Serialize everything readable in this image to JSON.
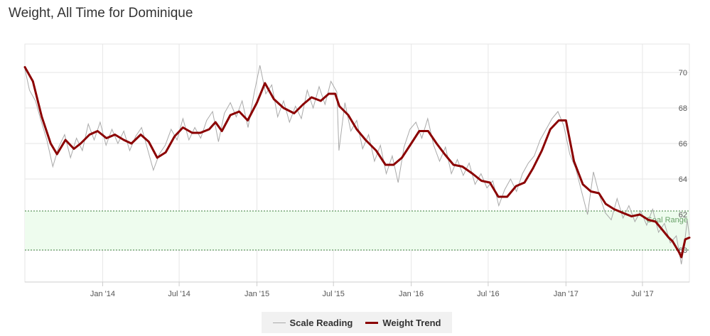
{
  "page": {
    "title": "Weight, All Time for Dominique"
  },
  "colors": {
    "trend": "#8b0000",
    "scale": "#a9a9a9",
    "goal_fill": "#eefcee",
    "goal_line": "#3a7d3a",
    "grid": "#e6e6e6",
    "axis": "#cccccc"
  },
  "legend": {
    "scale_label": "Scale Reading",
    "trend_label": "Weight Trend"
  },
  "chart_data": {
    "type": "line",
    "title": "Weight, All Time for Dominique",
    "x_start": "2013-07-01",
    "x_end": "2017-10-20",
    "xlim": [
      "2013-07-01",
      "2017-10-20"
    ],
    "ylim": [
      58.2,
      71.6
    ],
    "x_ticks": [
      {
        "date": "2014-01-01",
        "label": "Jan '14"
      },
      {
        "date": "2014-07-01",
        "label": "Jul '14"
      },
      {
        "date": "2015-01-01",
        "label": "Jan '15"
      },
      {
        "date": "2015-07-01",
        "label": "Jul '15"
      },
      {
        "date": "2016-01-01",
        "label": "Jan '16"
      },
      {
        "date": "2016-07-01",
        "label": "Jul '16"
      },
      {
        "date": "2017-01-01",
        "label": "Jan '17"
      },
      {
        "date": "2017-07-01",
        "label": "Jul '17"
      }
    ],
    "y_ticks": [
      60,
      62,
      64,
      66,
      68,
      70
    ],
    "grid": true,
    "legend_position": "bottom-center",
    "goal_range": {
      "min": 60,
      "max": 62.2,
      "label": "Goal Range"
    },
    "series": [
      {
        "name": "Weight Trend",
        "data": [
          [
            "2013-07-01",
            70.3
          ],
          [
            "2013-07-20",
            69.5
          ],
          [
            "2013-08-10",
            67.5
          ],
          [
            "2013-08-31",
            66.0
          ],
          [
            "2013-09-15",
            65.4
          ],
          [
            "2013-10-05",
            66.2
          ],
          [
            "2013-10-25",
            65.7
          ],
          [
            "2013-11-10",
            66.0
          ],
          [
            "2013-12-01",
            66.5
          ],
          [
            "2013-12-20",
            66.7
          ],
          [
            "2014-01-10",
            66.3
          ],
          [
            "2014-01-30",
            66.5
          ],
          [
            "2014-02-20",
            66.2
          ],
          [
            "2014-03-10",
            66.0
          ],
          [
            "2014-04-01",
            66.5
          ],
          [
            "2014-04-20",
            66.1
          ],
          [
            "2014-05-10",
            65.2
          ],
          [
            "2014-05-30",
            65.5
          ],
          [
            "2014-06-20",
            66.4
          ],
          [
            "2014-07-10",
            66.9
          ],
          [
            "2014-08-01",
            66.6
          ],
          [
            "2014-08-20",
            66.6
          ],
          [
            "2014-09-10",
            66.8
          ],
          [
            "2014-09-25",
            67.2
          ],
          [
            "2014-10-10",
            66.7
          ],
          [
            "2014-10-30",
            67.6
          ],
          [
            "2014-11-20",
            67.8
          ],
          [
            "2014-12-10",
            67.3
          ],
          [
            "2015-01-01",
            68.3
          ],
          [
            "2015-01-20",
            69.4
          ],
          [
            "2015-02-10",
            68.5
          ],
          [
            "2015-03-05",
            68.0
          ],
          [
            "2015-03-30",
            67.7
          ],
          [
            "2015-04-20",
            68.2
          ],
          [
            "2015-05-10",
            68.6
          ],
          [
            "2015-06-01",
            68.4
          ],
          [
            "2015-06-20",
            68.8
          ],
          [
            "2015-07-05",
            68.8
          ],
          [
            "2015-07-15",
            68.1
          ],
          [
            "2015-08-05",
            67.6
          ],
          [
            "2015-08-25",
            66.8
          ],
          [
            "2015-09-15",
            66.2
          ],
          [
            "2015-10-10",
            65.6
          ],
          [
            "2015-11-01",
            64.8
          ],
          [
            "2015-11-20",
            64.8
          ],
          [
            "2015-12-10",
            65.2
          ],
          [
            "2016-01-01",
            66.0
          ],
          [
            "2016-01-20",
            66.7
          ],
          [
            "2016-02-10",
            66.7
          ],
          [
            "2016-03-01",
            66.0
          ],
          [
            "2016-03-20",
            65.4
          ],
          [
            "2016-04-10",
            64.8
          ],
          [
            "2016-05-01",
            64.7
          ],
          [
            "2016-05-25",
            64.3
          ],
          [
            "2016-06-15",
            63.9
          ],
          [
            "2016-07-05",
            63.8
          ],
          [
            "2016-07-25",
            63.0
          ],
          [
            "2016-08-15",
            63.0
          ],
          [
            "2016-09-05",
            63.6
          ],
          [
            "2016-09-25",
            63.8
          ],
          [
            "2016-10-15",
            64.6
          ],
          [
            "2016-11-05",
            65.6
          ],
          [
            "2016-11-25",
            66.8
          ],
          [
            "2016-12-15",
            67.3
          ],
          [
            "2017-01-01",
            67.3
          ],
          [
            "2017-01-20",
            65.0
          ],
          [
            "2017-02-10",
            63.7
          ],
          [
            "2017-03-01",
            63.3
          ],
          [
            "2017-03-20",
            63.2
          ],
          [
            "2017-04-05",
            62.6
          ],
          [
            "2017-04-25",
            62.3
          ],
          [
            "2017-05-15",
            62.1
          ],
          [
            "2017-06-05",
            61.9
          ],
          [
            "2017-06-25",
            62.0
          ],
          [
            "2017-07-15",
            61.7
          ],
          [
            "2017-08-01",
            61.6
          ],
          [
            "2017-08-15",
            61.2
          ],
          [
            "2017-09-01",
            60.7
          ],
          [
            "2017-09-10",
            60.5
          ],
          [
            "2017-09-25",
            59.9
          ],
          [
            "2017-10-01",
            59.6
          ],
          [
            "2017-10-10",
            60.6
          ],
          [
            "2017-10-20",
            60.7
          ]
        ]
      },
      {
        "name": "Scale Reading",
        "data": [
          [
            "2013-07-01",
            70.2
          ],
          [
            "2013-07-12",
            69.0
          ],
          [
            "2013-07-26",
            68.4
          ],
          [
            "2013-08-08",
            67.3
          ],
          [
            "2013-08-22",
            66.2
          ],
          [
            "2013-09-05",
            64.7
          ],
          [
            "2013-09-19",
            65.8
          ],
          [
            "2013-10-03",
            66.5
          ],
          [
            "2013-10-17",
            65.2
          ],
          [
            "2013-10-31",
            66.3
          ],
          [
            "2013-11-14",
            65.6
          ],
          [
            "2013-11-28",
            67.1
          ],
          [
            "2013-12-12",
            66.2
          ],
          [
            "2013-12-26",
            67.2
          ],
          [
            "2014-01-09",
            65.9
          ],
          [
            "2014-01-23",
            66.8
          ],
          [
            "2014-02-06",
            66.0
          ],
          [
            "2014-02-20",
            66.7
          ],
          [
            "2014-03-06",
            65.6
          ],
          [
            "2014-03-20",
            66.4
          ],
          [
            "2014-04-03",
            66.9
          ],
          [
            "2014-04-17",
            65.7
          ],
          [
            "2014-05-01",
            64.5
          ],
          [
            "2014-05-15",
            65.4
          ],
          [
            "2014-05-29",
            65.9
          ],
          [
            "2014-06-12",
            66.8
          ],
          [
            "2014-06-26",
            66.2
          ],
          [
            "2014-07-10",
            67.4
          ],
          [
            "2014-07-24",
            66.2
          ],
          [
            "2014-08-07",
            66.9
          ],
          [
            "2014-08-21",
            66.3
          ],
          [
            "2014-09-04",
            67.3
          ],
          [
            "2014-09-18",
            67.8
          ],
          [
            "2014-10-02",
            66.1
          ],
          [
            "2014-10-16",
            67.7
          ],
          [
            "2014-10-30",
            68.3
          ],
          [
            "2014-11-13",
            67.5
          ],
          [
            "2014-11-27",
            68.4
          ],
          [
            "2014-12-11",
            66.9
          ],
          [
            "2014-12-25",
            68.8
          ],
          [
            "2015-01-08",
            70.4
          ],
          [
            "2015-01-22",
            68.8
          ],
          [
            "2015-02-05",
            69.3
          ],
          [
            "2015-02-19",
            67.5
          ],
          [
            "2015-03-05",
            68.4
          ],
          [
            "2015-03-19",
            67.2
          ],
          [
            "2015-04-02",
            68.1
          ],
          [
            "2015-04-16",
            67.4
          ],
          [
            "2015-04-30",
            69.0
          ],
          [
            "2015-05-14",
            68.0
          ],
          [
            "2015-05-28",
            69.2
          ],
          [
            "2015-06-11",
            68.2
          ],
          [
            "2015-06-25",
            69.5
          ],
          [
            "2015-07-09",
            68.9
          ],
          [
            "2015-07-14",
            65.6
          ],
          [
            "2015-07-28",
            68.3
          ],
          [
            "2015-08-11",
            66.7
          ],
          [
            "2015-08-25",
            67.3
          ],
          [
            "2015-09-08",
            65.7
          ],
          [
            "2015-09-22",
            66.5
          ],
          [
            "2015-10-06",
            65.0
          ],
          [
            "2015-10-20",
            65.9
          ],
          [
            "2015-11-03",
            64.3
          ],
          [
            "2015-11-17",
            65.3
          ],
          [
            "2015-12-01",
            63.8
          ],
          [
            "2015-12-15",
            65.8
          ],
          [
            "2015-12-29",
            66.8
          ],
          [
            "2016-01-12",
            67.2
          ],
          [
            "2016-01-26",
            66.3
          ],
          [
            "2016-02-09",
            67.4
          ],
          [
            "2016-02-23",
            65.9
          ],
          [
            "2016-03-08",
            65.0
          ],
          [
            "2016-03-22",
            65.8
          ],
          [
            "2016-04-05",
            64.3
          ],
          [
            "2016-04-19",
            65.1
          ],
          [
            "2016-05-03",
            64.2
          ],
          [
            "2016-05-17",
            64.9
          ],
          [
            "2016-05-31",
            63.7
          ],
          [
            "2016-06-14",
            64.3
          ],
          [
            "2016-06-28",
            63.5
          ],
          [
            "2016-07-12",
            63.9
          ],
          [
            "2016-07-26",
            62.5
          ],
          [
            "2016-08-09",
            63.4
          ],
          [
            "2016-08-23",
            64.0
          ],
          [
            "2016-09-06",
            63.3
          ],
          [
            "2016-09-20",
            64.3
          ],
          [
            "2016-10-04",
            64.9
          ],
          [
            "2016-10-18",
            65.3
          ],
          [
            "2016-11-01",
            66.2
          ],
          [
            "2016-11-15",
            66.8
          ],
          [
            "2016-11-29",
            67.4
          ],
          [
            "2016-12-13",
            67.8
          ],
          [
            "2016-12-27",
            67.0
          ],
          [
            "2017-01-10",
            65.4
          ],
          [
            "2017-01-24",
            64.6
          ],
          [
            "2017-02-07",
            63.3
          ],
          [
            "2017-02-21",
            62.0
          ],
          [
            "2017-03-07",
            64.4
          ],
          [
            "2017-03-21",
            63.1
          ],
          [
            "2017-04-04",
            62.1
          ],
          [
            "2017-04-18",
            61.7
          ],
          [
            "2017-05-02",
            62.9
          ],
          [
            "2017-05-16",
            61.8
          ],
          [
            "2017-05-30",
            62.5
          ],
          [
            "2017-06-13",
            61.6
          ],
          [
            "2017-06-27",
            62.2
          ],
          [
            "2017-07-11",
            61.4
          ],
          [
            "2017-07-25",
            62.3
          ],
          [
            "2017-08-08",
            61.0
          ],
          [
            "2017-08-22",
            61.5
          ],
          [
            "2017-09-05",
            60.4
          ],
          [
            "2017-09-19",
            60.8
          ],
          [
            "2017-10-01",
            59.2
          ],
          [
            "2017-10-08",
            60.3
          ],
          [
            "2017-10-15",
            61.7
          ],
          [
            "2017-10-20",
            60.8
          ]
        ]
      }
    ]
  }
}
